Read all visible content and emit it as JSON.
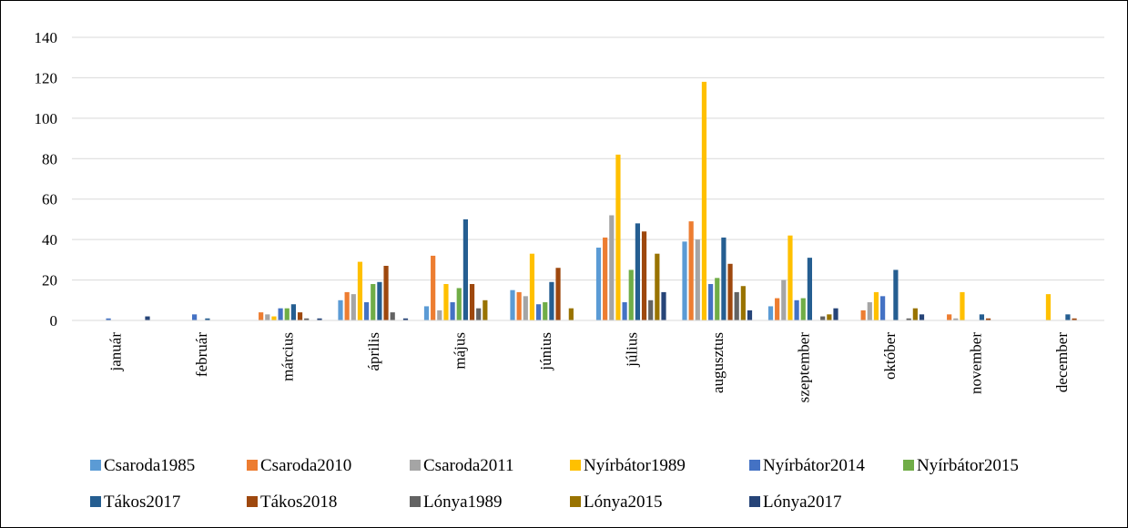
{
  "chart_data": {
    "type": "bar",
    "title": "",
    "xlabel": "",
    "ylabel": "",
    "ylim": [
      0,
      140
    ],
    "yticks": [
      0,
      20,
      40,
      60,
      80,
      100,
      120,
      140
    ],
    "grid": true,
    "legend_position": "bottom",
    "categories": [
      "január",
      "február",
      "március",
      "április",
      "május",
      "június",
      "július",
      "augusztus",
      "szeptember",
      "október",
      "november",
      "december"
    ],
    "series": [
      {
        "name": "Csaroda1985",
        "color": "#5B9BD5",
        "values": [
          0,
          0,
          0,
          10,
          7,
          15,
          36,
          39,
          7,
          0,
          0,
          0
        ]
      },
      {
        "name": "Csaroda2010",
        "color": "#ED7D31",
        "values": [
          0,
          0,
          4,
          14,
          32,
          14,
          41,
          49,
          11,
          5,
          3,
          0
        ]
      },
      {
        "name": "Csaroda2011",
        "color": "#A5A5A5",
        "values": [
          0,
          0,
          3,
          13,
          5,
          12,
          52,
          40,
          20,
          9,
          1,
          0
        ]
      },
      {
        "name": "Nyírbátor1989",
        "color": "#FFC000",
        "values": [
          0,
          0,
          2,
          29,
          18,
          33,
          82,
          118,
          42,
          14,
          14,
          13
        ]
      },
      {
        "name": "Nyírbátor2014",
        "color": "#4472C4",
        "values": [
          1,
          3,
          6,
          9,
          9,
          8,
          9,
          18,
          10,
          12,
          0,
          0
        ]
      },
      {
        "name": "Nyírbátor2015",
        "color": "#70AD47",
        "values": [
          0,
          0,
          6,
          18,
          16,
          9,
          25,
          21,
          11,
          0,
          0,
          0
        ]
      },
      {
        "name": "Tákos2017",
        "color": "#255E91",
        "values": [
          0,
          1,
          8,
          19,
          50,
          19,
          48,
          41,
          31,
          25,
          3,
          3
        ]
      },
      {
        "name": "Tákos2018",
        "color": "#9E480E",
        "values": [
          0,
          0,
          4,
          27,
          18,
          26,
          44,
          28,
          0,
          0,
          1,
          1
        ]
      },
      {
        "name": "Lónya1989",
        "color": "#636363",
        "values": [
          0,
          0,
          1,
          4,
          6,
          0,
          10,
          14,
          2,
          1,
          0,
          0
        ]
      },
      {
        "name": "Lónya2015",
        "color": "#997300",
        "values": [
          0,
          0,
          0,
          0,
          10,
          6,
          33,
          17,
          3,
          6,
          0,
          0
        ]
      },
      {
        "name": "Lónya2017",
        "color": "#264478",
        "values": [
          2,
          0,
          1,
          1,
          0,
          0,
          14,
          5,
          6,
          3,
          0,
          0
        ]
      }
    ]
  }
}
